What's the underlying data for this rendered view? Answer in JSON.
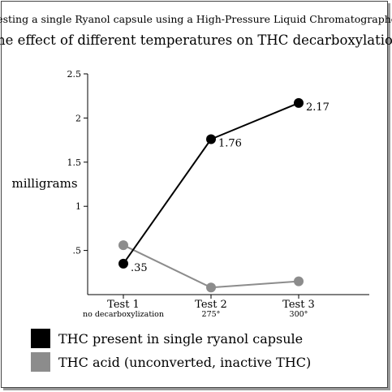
{
  "chart_data": {
    "type": "line",
    "title": "Testing a single Ryanol capsule using a High-Pressure Liquid Chromatographer",
    "subtitle": "the effect of different temperatures on THC decarboxylation",
    "ylabel": "milligrams",
    "xlabel": "",
    "ylim": [
      0,
      2.5
    ],
    "grid": false,
    "legend_position": "bottom-left",
    "y_ticks": [
      {
        "value": 0.5,
        "label": ".5"
      },
      {
        "value": 1,
        "label": "1"
      },
      {
        "value": 1.5,
        "label": "1.5"
      },
      {
        "value": 2,
        "label": "2"
      },
      {
        "value": 2.5,
        "label": "2.5"
      }
    ],
    "categories": [
      "Test 1",
      "Test 2",
      "Test 3"
    ],
    "category_sublabels": [
      "no decarboxylization",
      "275°",
      "300°"
    ],
    "series": [
      {
        "name": "THC present in single ryanol capsule",
        "color": "#000000",
        "values": [
          0.35,
          1.76,
          2.17
        ],
        "labels": [
          ".35",
          "1.76",
          "2.17"
        ]
      },
      {
        "name": "THC acid (unconverted, inactive THC)",
        "color": "#8c8c8c",
        "values": [
          0.56,
          0.08,
          0.15
        ],
        "labels": [
          "",
          "",
          ""
        ]
      }
    ]
  }
}
